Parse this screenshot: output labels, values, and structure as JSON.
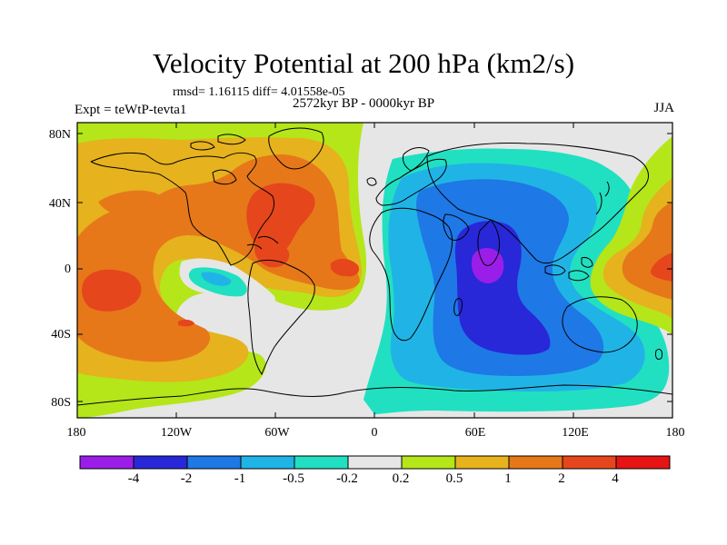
{
  "title": "Velocity Potential at 200 hPa (km2/s)",
  "stats": "rmsd= 1.16115 diff= 4.01558e-05",
  "period": "2572kyr BP - 0000kyr BP",
  "experiment": "Expt = teWtP-tevta1",
  "season": "JJA",
  "lat_labels": [
    "80N",
    "40N",
    "0",
    "40S",
    "80S"
  ],
  "lon_labels": [
    "180",
    "120W",
    "60W",
    "0",
    "60E",
    "120E",
    "180"
  ],
  "colorbar": {
    "colors": [
      "#9b1ee8",
      "#2828d8",
      "#1e78e6",
      "#20b4e6",
      "#21e0c1",
      "#e6e6e6",
      "#b4e61a",
      "#e6b21e",
      "#e6781a",
      "#e6461c",
      "#e61414"
    ],
    "labels": [
      "-4",
      "-2",
      "-1",
      "-0.5",
      "-0.2",
      "0.2",
      "0.5",
      "1",
      "2",
      "4"
    ]
  }
}
